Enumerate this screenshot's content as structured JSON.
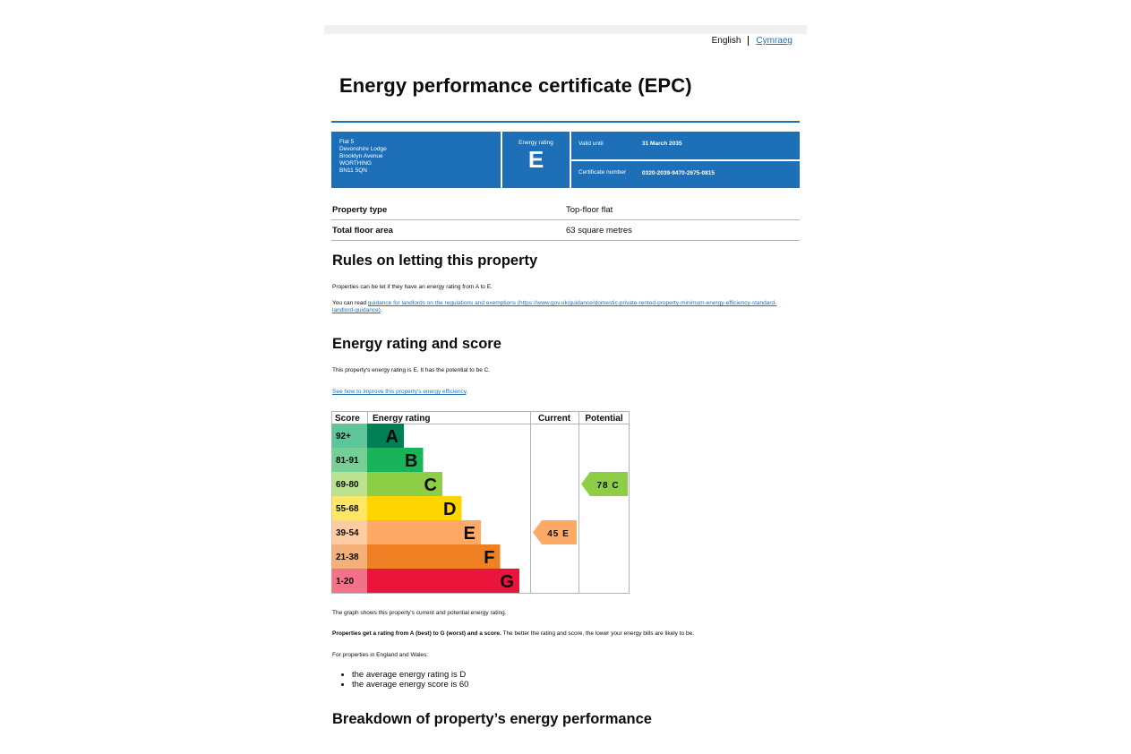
{
  "language": {
    "current": "English",
    "alternate": "Cymraeg"
  },
  "title": "Energy performance certificate (EPC)",
  "summary": {
    "address_lines": [
      "Flat 5",
      "Devonshire Lodge",
      "Brooklyn Avenue",
      "WORTHING",
      "BN11 5QN"
    ],
    "energy_rating_label": "Energy rating",
    "energy_rating": "E",
    "valid_until_label": "Valid until",
    "valid_until": "31 March 2035",
    "certificate_number_label": "Certificate number",
    "certificate_number": "0320-2039-9470-2675-0815"
  },
  "property": [
    {
      "label": "Property type",
      "value": "Top-floor flat"
    },
    {
      "label": "Total floor area",
      "value": "63 square metres"
    }
  ],
  "rules": {
    "heading": "Rules on letting this property",
    "text1": "Properties can be let if they have an energy rating from A to E.",
    "text2_prefix": "You can read ",
    "link": "guidance for landlords on the regulations and exemptions (https://www.gov.uk/guidance/domestic-private-rented-property-minimum-energy-efficiency-standard-landlord-guidance)",
    "text2_suffix": "."
  },
  "energy": {
    "heading": "Energy rating and score",
    "text1": "This property's energy rating is E. It has the potential to be C.",
    "link": "See how to improve this property's energy efficiency",
    "link_suffix": ".",
    "graph_note": "The graph shows this property's current and potential energy rating.",
    "bold_note": "Properties get a rating from A (best) to G (worst) and a score.",
    "note_rest": " The better the rating and score, the lower your energy bills are likely to be.",
    "ew_intro": "For properties in England and Wales:",
    "bullets": [
      "the average energy rating is D",
      "the average energy score is 60"
    ]
  },
  "breakdown_heading": "Breakdown of property’s energy performance",
  "chart_data": {
    "type": "table",
    "headers": [
      "Score",
      "Energy rating",
      "Current",
      "Potential"
    ],
    "bands": [
      {
        "score": "92+",
        "letter": "A",
        "color": "#008054",
        "light": "#5ec49a"
      },
      {
        "score": "81-91",
        "letter": "B",
        "color": "#19b459",
        "light": "#75d096"
      },
      {
        "score": "69-80",
        "letter": "C",
        "color": "#8dce46",
        "light": "#bbe28f"
      },
      {
        "score": "55-68",
        "letter": "D",
        "color": "#ffd500",
        "light": "#ffe766"
      },
      {
        "score": "39-54",
        "letter": "E",
        "color": "#fcaa65",
        "light": "#fdcca3"
      },
      {
        "score": "21-38",
        "letter": "F",
        "color": "#ef8023",
        "light": "#f5b07a"
      },
      {
        "score": "1-20",
        "letter": "G",
        "color": "#e9153b",
        "light": "#f27289"
      }
    ],
    "current": {
      "score": 45,
      "letter": "E",
      "label": "45 E"
    },
    "potential": {
      "score": 78,
      "letter": "C",
      "label": "78 C"
    }
  }
}
